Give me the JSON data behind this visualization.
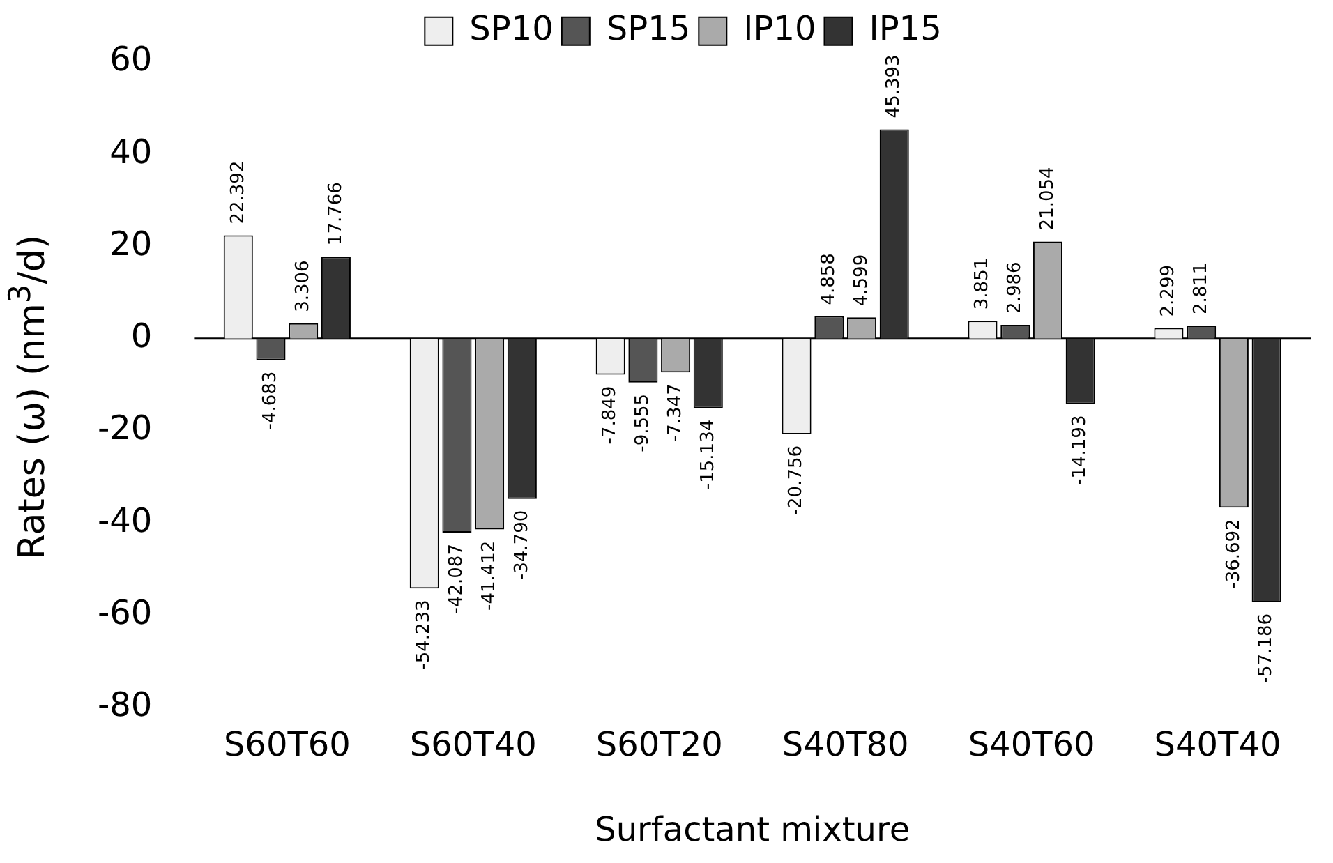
{
  "chart_data": {
    "type": "bar",
    "xlabel": "Surfactant mixture",
    "ylabel": "Rates (ω) (nm$^{3}$/d)",
    "categories": [
      "S60T60",
      "S60T40",
      "S60T20",
      "S40T80",
      "S40T60",
      "S40T40"
    ],
    "series": [
      {
        "name": "SP10",
        "color": "#eeeeee",
        "values": [
          22.392,
          -54.233,
          -7.849,
          -20.756,
          3.851,
          2.299
        ],
        "value_labels": [
          "22.392",
          "-54.233",
          "-7.849",
          "-20.756",
          "3.851",
          "2.299"
        ]
      },
      {
        "name": "SP15",
        "color": "#555555",
        "values": [
          -4.683,
          -42.087,
          -9.555,
          4.858,
          2.986,
          2.811
        ],
        "value_labels": [
          "-4.683",
          "-42.087",
          "-9.555",
          "4.858",
          "2.986",
          "2.811"
        ]
      },
      {
        "name": "IP10",
        "color": "#aaaaaa",
        "values": [
          3.306,
          -41.412,
          -7.347,
          4.599,
          21.054,
          -36.692
        ],
        "value_labels": [
          "3.306",
          "-41.412",
          "-7.347",
          "4.599",
          "21.054",
          "-36.692"
        ]
      },
      {
        "name": "IP15",
        "color": "#333333",
        "values": [
          17.766,
          -34.79,
          -15.134,
          45.393,
          -14.193,
          -57.186
        ],
        "value_labels": [
          "17.766",
          "-34.790",
          "-15.134",
          "45.393",
          "-14.193",
          "-57.186"
        ]
      }
    ],
    "ref_lines": [
      {
        "axis": "y",
        "value": 0,
        "color": "#000000"
      }
    ],
    "ylim": [
      -80,
      60
    ],
    "yticks": [
      -80,
      -60,
      -40,
      -20,
      0,
      20,
      40,
      60
    ],
    "legend": "top",
    "grid": false
  }
}
